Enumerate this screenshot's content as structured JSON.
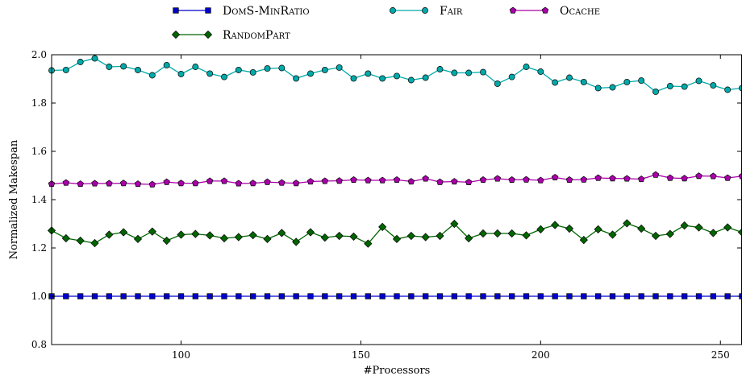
{
  "chart_data": {
    "type": "line",
    "xlabel": "#Processors",
    "ylabel": "Normalized Makespan",
    "xlim": [
      64,
      256
    ],
    "ylim": [
      0.8,
      2.0
    ],
    "xticks": [
      100,
      150,
      200,
      250
    ],
    "xtick_labels": [
      "100",
      "150",
      "200",
      "250"
    ],
    "yticks": [
      0.8,
      1.0,
      1.2,
      1.4,
      1.6,
      1.8,
      2.0
    ],
    "ytick_labels": [
      "0.8",
      "1.0",
      "1.2",
      "1.4",
      "1.6",
      "1.8",
      "2.0"
    ],
    "grid": false,
    "legend": "top-center",
    "x": [
      64,
      68,
      72,
      76,
      80,
      84,
      88,
      92,
      96,
      100,
      104,
      108,
      112,
      116,
      120,
      124,
      128,
      132,
      136,
      140,
      144,
      148,
      152,
      156,
      160,
      164,
      168,
      172,
      176,
      180,
      184,
      188,
      192,
      196,
      200,
      204,
      208,
      212,
      216,
      220,
      224,
      228,
      232,
      236,
      240,
      244,
      248,
      252,
      256
    ],
    "series": [
      {
        "name": "DomS-MinRatio",
        "color": "#0000cc",
        "marker": "square",
        "values": [
          1.0,
          1.0,
          1.0,
          1.0,
          1.0,
          1.0,
          1.0,
          1.0,
          1.0,
          1.0,
          1.0,
          1.0,
          1.0,
          1.0,
          1.0,
          1.0,
          1.0,
          1.0,
          1.0,
          1.0,
          1.0,
          1.0,
          1.0,
          1.0,
          1.0,
          1.0,
          1.0,
          1.0,
          1.0,
          1.0,
          1.0,
          1.0,
          1.0,
          1.0,
          1.0,
          1.0,
          1.0,
          1.0,
          1.0,
          1.0,
          1.0,
          1.0,
          1.0,
          1.0,
          1.0,
          1.0,
          1.0,
          1.0,
          1.0
        ]
      },
      {
        "name": "Fair",
        "color": "#00aaaa",
        "marker": "circle",
        "values": [
          1.935,
          1.937,
          1.97,
          1.985,
          1.95,
          1.952,
          1.937,
          1.915,
          1.957,
          1.92,
          1.95,
          1.922,
          1.908,
          1.937,
          1.927,
          1.943,
          1.945,
          1.902,
          1.922,
          1.937,
          1.947,
          1.902,
          1.922,
          1.902,
          1.912,
          1.895,
          1.905,
          1.94,
          1.925,
          1.925,
          1.928,
          1.88,
          1.908,
          1.95,
          1.93,
          1.885,
          1.905,
          1.887,
          1.862,
          1.865,
          1.887,
          1.893,
          1.847,
          1.87,
          1.868,
          1.892,
          1.873,
          1.855,
          1.862
        ]
      },
      {
        "name": "Ocache",
        "color": "#aa00aa",
        "marker": "pentagon",
        "values": [
          1.465,
          1.47,
          1.465,
          1.467,
          1.467,
          1.468,
          1.465,
          1.463,
          1.473,
          1.468,
          1.468,
          1.477,
          1.477,
          1.467,
          1.468,
          1.473,
          1.47,
          1.468,
          1.475,
          1.477,
          1.478,
          1.482,
          1.48,
          1.48,
          1.482,
          1.475,
          1.487,
          1.473,
          1.475,
          1.472,
          1.482,
          1.487,
          1.482,
          1.483,
          1.48,
          1.492,
          1.482,
          1.483,
          1.49,
          1.488,
          1.487,
          1.485,
          1.503,
          1.49,
          1.488,
          1.498,
          1.497,
          1.49,
          1.497
        ]
      },
      {
        "name": "RandomPart",
        "color": "#006600",
        "marker": "diamond",
        "values": [
          1.272,
          1.24,
          1.23,
          1.22,
          1.255,
          1.265,
          1.237,
          1.268,
          1.23,
          1.255,
          1.258,
          1.252,
          1.24,
          1.245,
          1.253,
          1.237,
          1.262,
          1.225,
          1.265,
          1.243,
          1.25,
          1.247,
          1.218,
          1.287,
          1.237,
          1.25,
          1.245,
          1.25,
          1.3,
          1.24,
          1.26,
          1.26,
          1.26,
          1.252,
          1.277,
          1.295,
          1.28,
          1.233,
          1.277,
          1.255,
          1.302,
          1.28,
          1.25,
          1.258,
          1.293,
          1.285,
          1.262,
          1.285,
          1.265
        ]
      }
    ]
  }
}
